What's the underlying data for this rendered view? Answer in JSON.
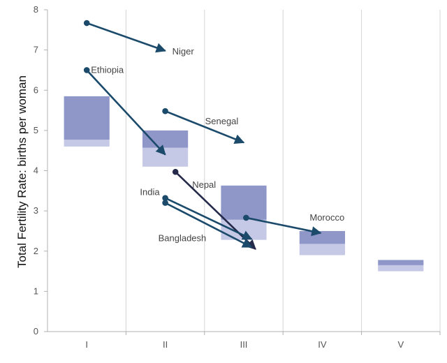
{
  "chart_data": {
    "type": "range-bars-with-arrows",
    "ylabel": "Total Fertility Rate: births per woman",
    "ylim": [
      0,
      8
    ],
    "y_ticks": [
      "0",
      "1",
      "2",
      "3",
      "4",
      "5",
      "6",
      "7",
      "8"
    ],
    "categories": [
      "I",
      "II",
      "III",
      "IV",
      "V"
    ],
    "grid": "vertical",
    "colors": {
      "upper_band": "#8f97c9",
      "lower_band": "#c5c9e6",
      "arrow": "#1b4a6b",
      "arrow_nepal": "#252a4a",
      "grid": "#d4d4d4",
      "axis": "#b0b0b0"
    },
    "ranges": [
      {
        "category": "I",
        "low": 4.6,
        "mid": 4.77,
        "high": 5.85
      },
      {
        "category": "II",
        "low": 4.1,
        "mid": 4.57,
        "high": 5.0
      },
      {
        "category": "III",
        "low": 2.28,
        "mid": 2.78,
        "high": 3.63
      },
      {
        "category": "IV",
        "low": 1.9,
        "mid": 2.18,
        "high": 2.5
      },
      {
        "category": "V",
        "low": 1.5,
        "mid": 1.65,
        "high": 1.78
      }
    ],
    "countries": [
      {
        "name": "Niger",
        "start": {
          "x": 0.0,
          "y": 7.67
        },
        "end": {
          "x": 1.0,
          "y": 6.98
        },
        "color": "arrow"
      },
      {
        "name": "Ethiopia",
        "start": {
          "x": 0.0,
          "y": 6.5
        },
        "end": {
          "x": 1.0,
          "y": 4.4
        },
        "color": "arrow"
      },
      {
        "name": "Senegal",
        "start": {
          "x": 1.0,
          "y": 5.48
        },
        "end": {
          "x": 2.0,
          "y": 4.7
        },
        "color": "arrow"
      },
      {
        "name": "Nepal",
        "start": {
          "x": 1.13,
          "y": 3.97
        },
        "end": {
          "x": 2.15,
          "y": 2.05
        },
        "color": "arrow_nepal"
      },
      {
        "name": "India",
        "start": {
          "x": 1.0,
          "y": 3.32
        },
        "end": {
          "x": 2.1,
          "y": 2.3
        },
        "color": "arrow"
      },
      {
        "name": "Bangladesh",
        "start": {
          "x": 1.0,
          "y": 3.2
        },
        "end": {
          "x": 2.1,
          "y": 2.1
        },
        "color": "arrow"
      },
      {
        "name": "Morocco",
        "start": {
          "x": 2.03,
          "y": 2.83
        },
        "end": {
          "x": 2.98,
          "y": 2.45
        },
        "color": "arrow"
      }
    ]
  }
}
